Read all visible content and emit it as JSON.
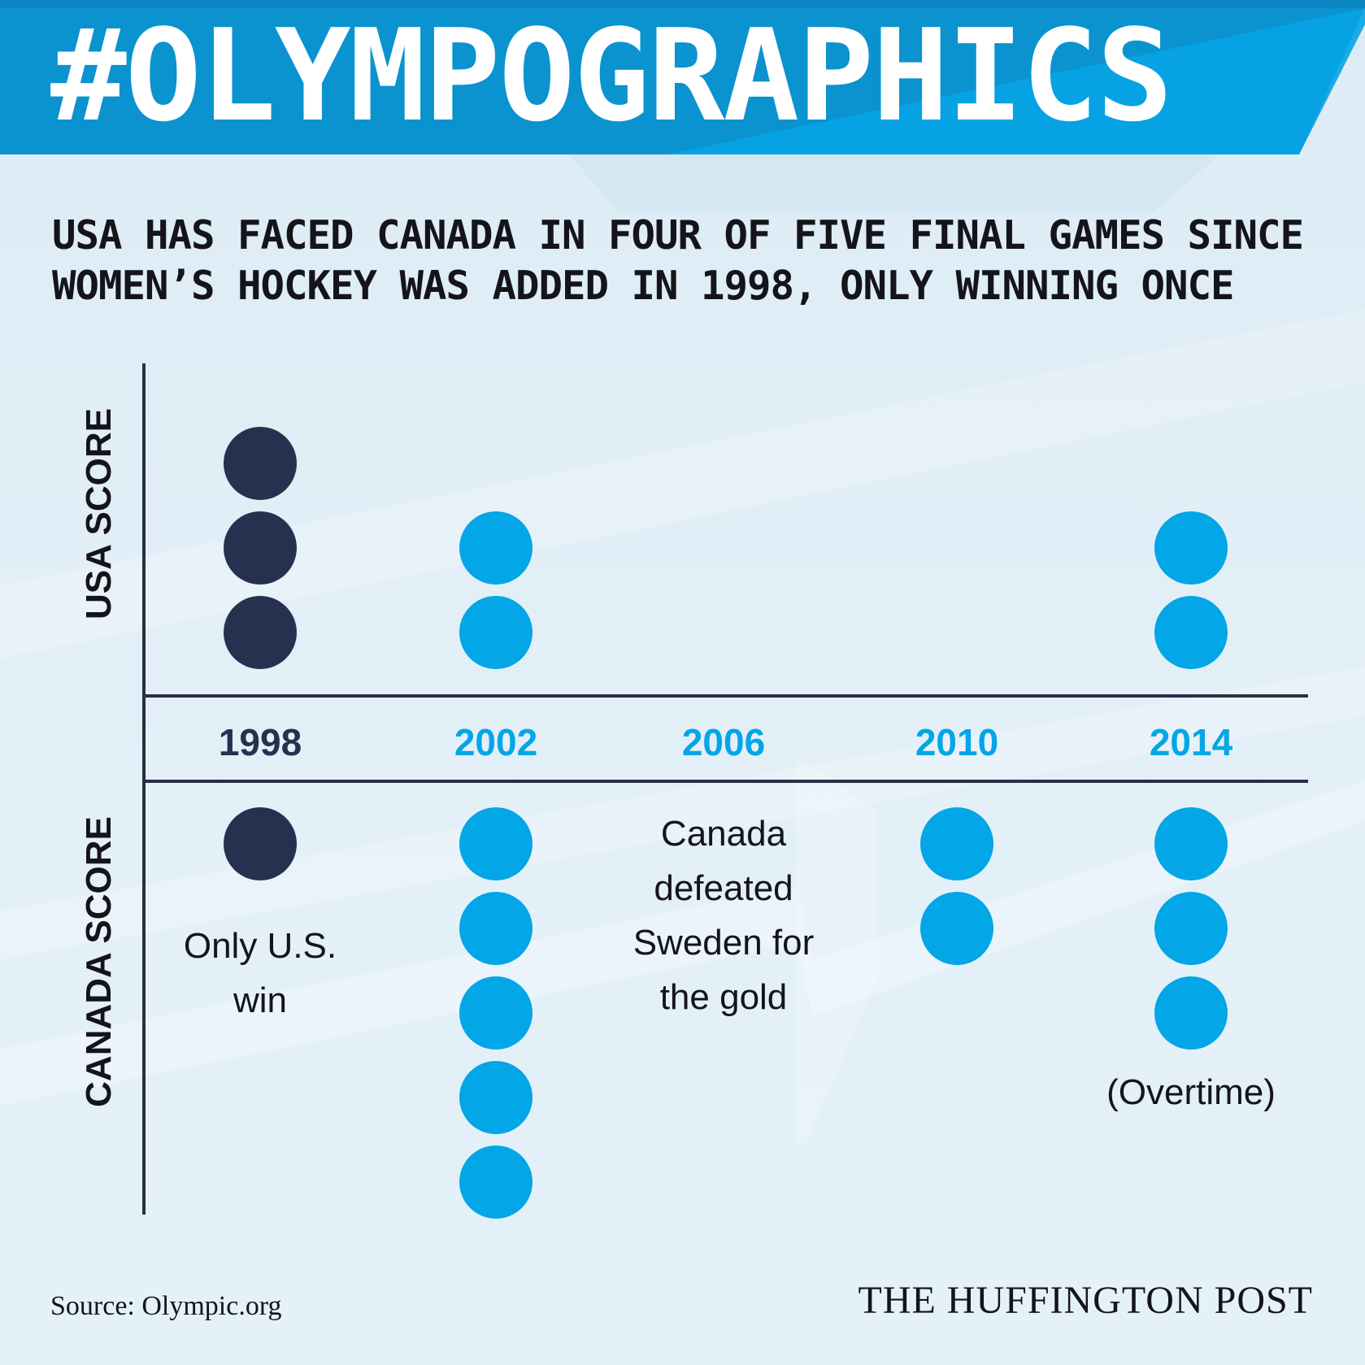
{
  "header": {
    "title": "#OLYMPOGRAPHICS"
  },
  "headline": {
    "line1": "USA HAS FACED CANADA IN FOUR OF FIVE FINAL GAMES SINCE",
    "line2": "WOMEN’S HOCKEY WAS ADDED IN 1998, ONLY WINNING ONCE"
  },
  "colors": {
    "banner": "#0a93cf",
    "dark_dot": "#263150",
    "light_dot": "#03a6e6",
    "axis_line": "#2a2f45",
    "text": "#14141a"
  },
  "chart_data": {
    "type": "dot plot",
    "y_top_label": "USA SCORE",
    "y_bottom_label": "CANADA SCORE",
    "categories": [
      "1998",
      "2002",
      "2006",
      "2010",
      "2014"
    ],
    "series": [
      {
        "name": "USA SCORE",
        "values": [
          3,
          2,
          0,
          0,
          2
        ]
      },
      {
        "name": "CANADA SCORE",
        "values": [
          1,
          5,
          0,
          2,
          3
        ]
      }
    ],
    "highlight_category": "1998",
    "annotations": [
      {
        "category": "1998",
        "text_lines": [
          "Only U.S.",
          "win"
        ]
      },
      {
        "category": "2006",
        "text_lines": [
          "Canada",
          "defeated",
          "Sweden for",
          "the gold"
        ]
      },
      {
        "category": "2014",
        "text_lines": [
          "(Overtime)"
        ]
      }
    ]
  },
  "footer": {
    "source": "Source: Olympic.org",
    "brand": "THE HUFFINGTON POST"
  }
}
